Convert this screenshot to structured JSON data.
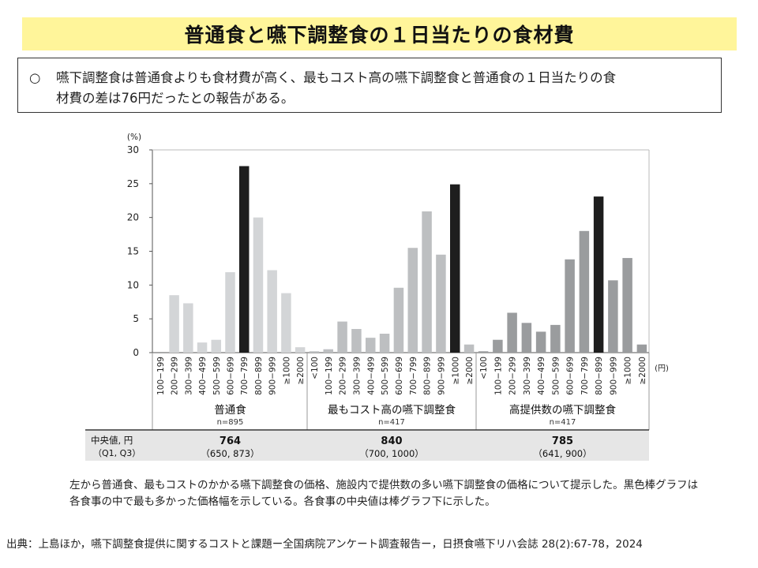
{
  "title": "普通食と嚥下調整食の１日当たりの食材費",
  "summary": {
    "bullet": "○",
    "line1": "嚥下調整食は普通食よりも食材費が高く、最もコスト高の嚥下調整食と普通食の１日当たりの食",
    "line2": "材費の差は76円だったとの報告がある。"
  },
  "chart_data": {
    "type": "bar",
    "y_unit": "(%)",
    "x_unit": "(円)",
    "ylim": [
      0,
      30
    ],
    "yticks": [
      0,
      5,
      10,
      15,
      20,
      25,
      30
    ],
    "colors": {
      "normal_bar": "#d3d5d7",
      "costly_bar": "#bdbfc1",
      "provided_bar": "#9a9c9e",
      "mode_bar": "#1e1e1e"
    },
    "groups": [
      {
        "name": "普通食",
        "n": "n=895",
        "categories": [
          "100−199",
          "200−299",
          "300−399",
          "400−499",
          "500−599",
          "600−699",
          "700−799",
          "800−899",
          "900−999",
          "≥1000",
          "≥2000"
        ],
        "values": [
          0,
          8.5,
          7.3,
          1.5,
          1.9,
          11.9,
          27.6,
          20.0,
          12.2,
          8.8,
          0.8
        ],
        "mode_index": 6,
        "median": "764",
        "quartiles": "（650,  873）"
      },
      {
        "name": "最もコスト高の嚥下調整食",
        "n": "n=417",
        "categories": [
          "<100",
          "100−199",
          "200−299",
          "300−399",
          "400−499",
          "500−599",
          "600−699",
          "700−799",
          "800−899",
          "900−999",
          "≥1000",
          "≥2000"
        ],
        "values": [
          0.2,
          0.5,
          4.6,
          3.5,
          2.2,
          2.8,
          9.6,
          15.5,
          20.9,
          14.5,
          24.9,
          1.2
        ],
        "mode_index": 10,
        "median": "840",
        "quartiles": "（700,  1000）"
      },
      {
        "name": "高提供数の嚥下調整食",
        "n": "n=417",
        "categories": [
          "<100",
          "100−199",
          "200−299",
          "300−399",
          "400−499",
          "500−599",
          "600−699",
          "700−799",
          "800−899",
          "900−999",
          "≥1000",
          "≥2000"
        ],
        "values": [
          0.2,
          1.9,
          5.9,
          4.4,
          3.1,
          4.1,
          13.8,
          18.0,
          23.1,
          10.7,
          14.0,
          1.2
        ],
        "mode_index": 8,
        "median": "785",
        "quartiles": "（641,  900）"
      }
    ],
    "median_row_label": "中央値, 円",
    "quartile_row_label": "（Q1, Q3）"
  },
  "caption": {
    "line1": "左から普通食、最もコストのかかる嚥下調整食の価格、施設内で提供数の多い嚥下調整食の価格について提示した。黒色棒グラフは",
    "line2": "各食事の中で最も多かった価格幅を示している。各食事の中央値は棒グラフ下に示した。"
  },
  "source": "出典：上島ほか，嚥下調整食提供に関するコストと課題ー全国病院アンケート調査報告ー，日摂食嚥下リハ会誌 28(2):67-78，2024"
}
